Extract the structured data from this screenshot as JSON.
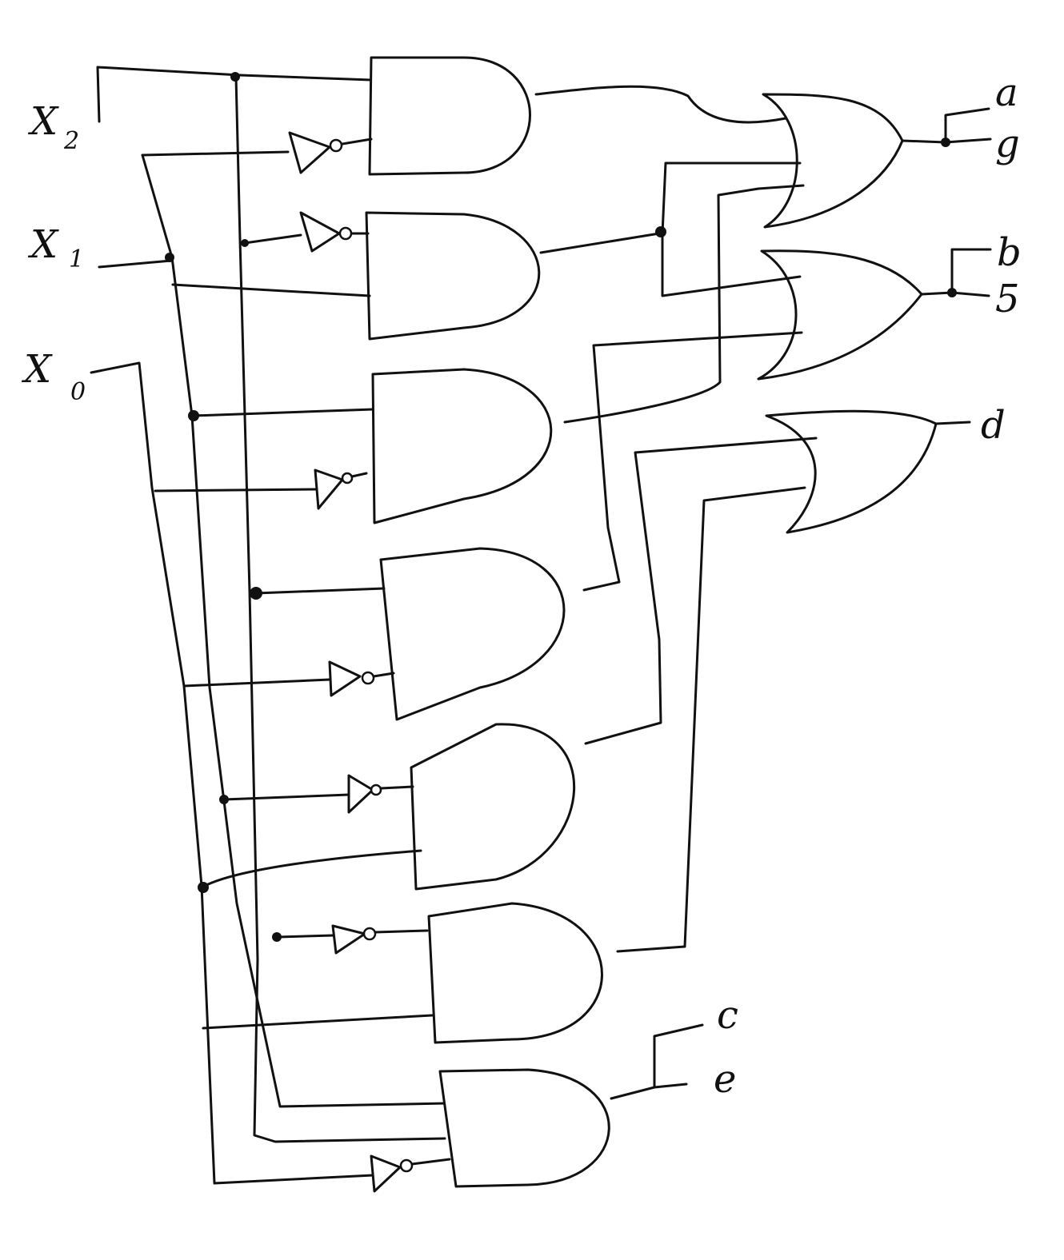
{
  "inputs": {
    "x2": {
      "name": "X",
      "sub": "2"
    },
    "x1": {
      "name": "X",
      "sub": "1"
    },
    "x0": {
      "name": "X",
      "sub": "0"
    }
  },
  "outputs": {
    "a": "a",
    "g": "g",
    "b": "b",
    "s": "5",
    "d": "d",
    "c": "c",
    "e": "e"
  },
  "colors": {
    "ink": "#111111",
    "paper": "#ffffff"
  },
  "gates": {
    "and": [
      "and-gate-1",
      "and-gate-2",
      "and-gate-3",
      "and-gate-4",
      "and-gate-5",
      "and-gate-6",
      "and-gate-7"
    ],
    "or": [
      "or-gate-ag",
      "or-gate-bs",
      "or-gate-d"
    ],
    "not": [
      "not-gate-1",
      "not-gate-2",
      "not-gate-3",
      "not-gate-4",
      "not-gate-5",
      "not-gate-6",
      "not-gate-7"
    ]
  }
}
